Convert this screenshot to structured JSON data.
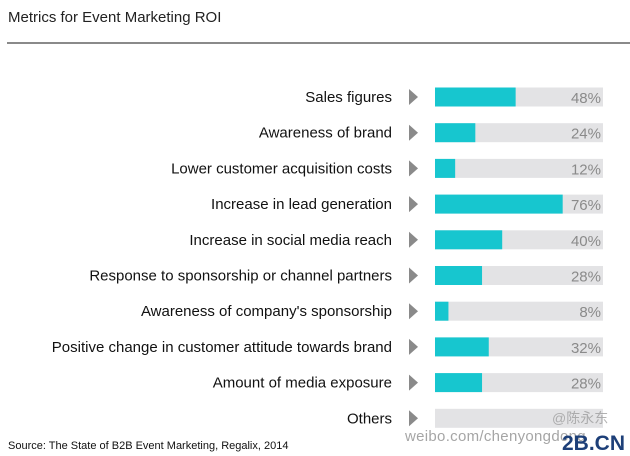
{
  "chart_data": {
    "type": "bar",
    "orientation": "horizontal",
    "title": "Metrics for Event Marketing ROI",
    "categories": [
      "Sales figures",
      "Awareness of brand",
      "Lower customer acquisition costs",
      "Increase in lead generation",
      "Increase in social media reach",
      "Response to sponsorship or channel partners",
      "Awareness of company's sponsorship",
      "Positive change in customer attitude towards brand",
      "Amount of media exposure",
      "Others"
    ],
    "values": [
      48,
      24,
      12,
      76,
      40,
      28,
      8,
      32,
      28,
      null
    ],
    "value_labels": [
      "48%",
      "24%",
      "12%",
      "76%",
      "40%",
      "28%",
      "8%",
      "32%",
      "28%",
      ""
    ],
    "xlim": [
      0,
      100
    ],
    "grid": false,
    "colors": {
      "bar": "#17c6cf",
      "track": "#e3e3e5",
      "marker": "#8a8a8a",
      "value_text": "#8a8a8a"
    }
  },
  "source": "Source: The State of B2B Event Marketing, Regalix, 2014",
  "watermark": {
    "handle": "@陈永东",
    "url": "weibo.com/chenyongdong",
    "logo": "2B.CN"
  }
}
